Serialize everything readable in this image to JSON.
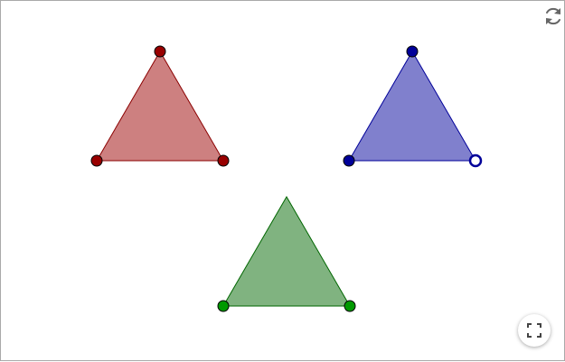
{
  "applet": {
    "reset_icon": "reset-icon",
    "fullscreen_icon": "fullscreen-icon",
    "background": "#ffffff",
    "border_color": "#a9a9a9"
  },
  "triangles": [
    {
      "name": "red",
      "fill": "#cd8080",
      "stroke": "#8b0000",
      "vertex_fill": "#990000",
      "vertex_style": [
        "filled",
        "filled",
        "filled"
      ]
    },
    {
      "name": "blue",
      "fill": "#8080cd",
      "stroke": "#000099",
      "vertex_fill": "#000099",
      "vertex_style": [
        "filled",
        "filled",
        "hollow"
      ]
    },
    {
      "name": "green",
      "fill": "#80b380",
      "stroke": "#006600",
      "vertex_fill": "#009900",
      "vertex_style": [
        "none",
        "filled",
        "filled"
      ]
    }
  ]
}
